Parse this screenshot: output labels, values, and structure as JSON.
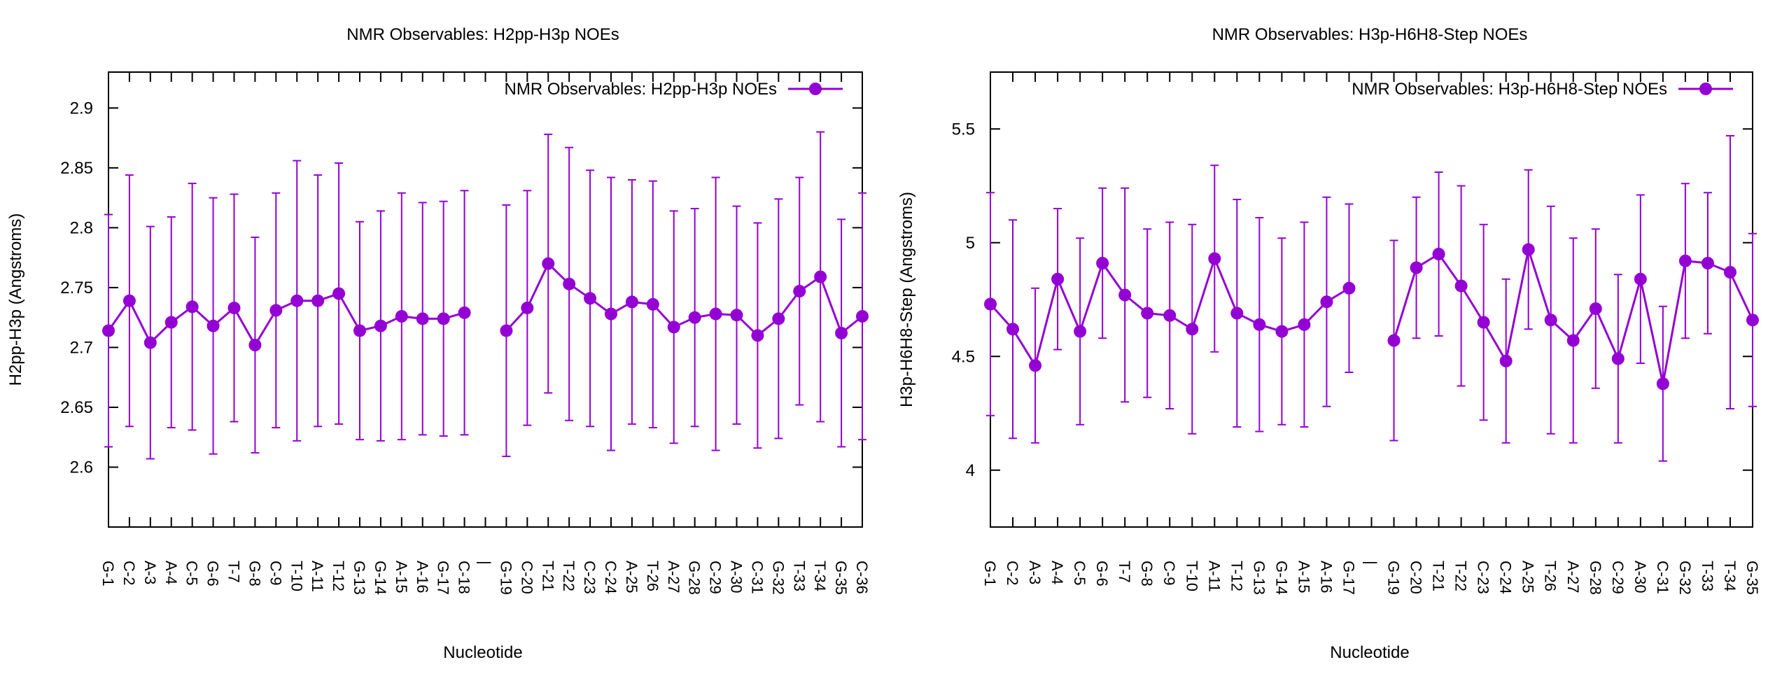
{
  "chart_data": [
    {
      "type": "line",
      "title": "NMR Observables: H2pp-H3p NOEs",
      "xlabel": "Nucleotide",
      "ylabel": "H2pp-H3p (Angstroms)",
      "ylim": [
        2.55,
        2.93
      ],
      "yticks": [
        2.6,
        2.65,
        2.7,
        2.75,
        2.8,
        2.85,
        2.9
      ],
      "categories": [
        "G-1",
        "C-2",
        "A-3",
        "A-4",
        "C-5",
        "G-6",
        "T-7",
        "G-8",
        "C-9",
        "T-10",
        "A-11",
        "T-12",
        "G-13",
        "G-14",
        "A-15",
        "A-16",
        "G-17",
        "C-18",
        "|",
        "G-19",
        "C-20",
        "T-21",
        "T-22",
        "C-23",
        "C-24",
        "A-25",
        "T-26",
        "A-27",
        "G-28",
        "C-29",
        "A-30",
        "C-31",
        "G-32",
        "T-33",
        "T-34",
        "G-35",
        "C-36"
      ],
      "legend": "top-right",
      "series": [
        {
          "name": "NMR Observables: H2pp-H3p NOEs",
          "color": "#9400d3",
          "values": [
            2.714,
            2.739,
            2.704,
            2.721,
            2.734,
            2.718,
            2.733,
            2.702,
            2.731,
            2.739,
            2.739,
            2.745,
            2.714,
            2.718,
            2.726,
            2.724,
            2.724,
            2.729,
            null,
            2.714,
            2.733,
            2.77,
            2.753,
            2.741,
            2.728,
            2.738,
            2.736,
            2.717,
            2.725,
            2.728,
            2.727,
            2.71,
            2.724,
            2.747,
            2.759,
            2.712,
            2.726
          ],
          "errors": [
            0.097,
            0.105,
            0.097,
            0.088,
            0.103,
            0.107,
            0.095,
            0.09,
            0.098,
            0.117,
            0.105,
            0.109,
            0.091,
            0.096,
            0.103,
            0.097,
            0.098,
            0.102,
            null,
            0.105,
            0.098,
            0.108,
            0.114,
            0.107,
            0.114,
            0.102,
            0.103,
            0.097,
            0.091,
            0.114,
            0.091,
            0.094,
            0.1,
            0.095,
            0.121,
            0.095,
            0.103
          ]
        }
      ]
    },
    {
      "type": "line",
      "title": "NMR Observables: H3p-H6H8-Step NOEs",
      "xlabel": "Nucleotide",
      "ylabel": "H3p-H6H8-Step (Angstroms)",
      "ylim": [
        3.75,
        5.75
      ],
      "yticks": [
        4,
        4.5,
        5,
        5.5
      ],
      "categories": [
        "G-1",
        "C-2",
        "A-3",
        "A-4",
        "C-5",
        "G-6",
        "T-7",
        "G-8",
        "C-9",
        "T-10",
        "A-11",
        "T-12",
        "G-13",
        "G-14",
        "A-15",
        "A-16",
        "G-17",
        "|",
        "G-19",
        "C-20",
        "T-21",
        "T-22",
        "C-23",
        "C-24",
        "A-25",
        "T-26",
        "A-27",
        "G-28",
        "C-29",
        "A-30",
        "C-31",
        "G-32",
        "T-33",
        "T-34",
        "G-35"
      ],
      "legend": "top-right",
      "series": [
        {
          "name": "NMR Observables: H3p-H6H8-Step NOEs",
          "color": "#9400d3",
          "values": [
            4.73,
            4.62,
            4.46,
            4.84,
            4.61,
            4.91,
            4.77,
            4.69,
            4.68,
            4.62,
            4.93,
            4.69,
            4.64,
            4.61,
            4.64,
            4.74,
            4.8,
            null,
            4.57,
            4.89,
            4.95,
            4.81,
            4.65,
            4.48,
            4.97,
            4.66,
            4.57,
            4.71,
            4.49,
            4.84,
            4.38,
            4.92,
            4.91,
            4.87,
            4.66
          ],
          "errors": [
            0.49,
            0.48,
            0.34,
            0.31,
            0.41,
            0.33,
            0.47,
            0.37,
            0.41,
            0.46,
            0.41,
            0.5,
            0.47,
            0.41,
            0.45,
            0.46,
            0.37,
            null,
            0.44,
            0.31,
            0.36,
            0.44,
            0.43,
            0.36,
            0.35,
            0.5,
            0.45,
            0.35,
            0.37,
            0.37,
            0.34,
            0.34,
            0.31,
            0.6,
            0.38
          ]
        }
      ]
    }
  ]
}
